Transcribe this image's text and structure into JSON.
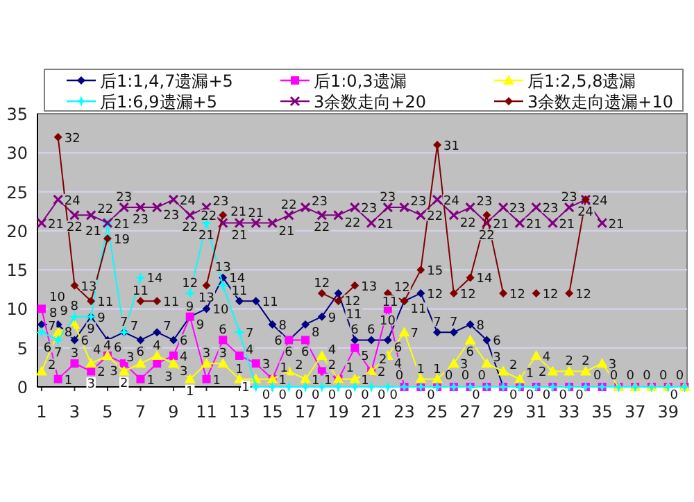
{
  "chart_data": {
    "type": "line",
    "x": [
      1,
      2,
      3,
      4,
      5,
      6,
      7,
      8,
      9,
      10,
      11,
      12,
      13,
      14,
      15,
      16,
      17,
      18,
      19,
      20,
      21,
      22,
      23,
      24,
      25,
      26,
      27,
      28,
      29,
      30,
      31,
      32,
      33,
      34,
      35,
      36,
      37,
      38,
      39,
      40
    ],
    "series": [
      {
        "name": "后1:1,4,7遗漏+5",
        "color": "#000080",
        "marker": "diamond",
        "values": [
          8,
          8,
          6,
          9,
          6,
          7,
          6,
          7,
          6,
          9,
          10,
          14,
          11,
          11,
          8,
          6,
          8,
          9,
          12,
          6,
          6,
          6,
          11,
          12,
          7,
          7,
          8,
          6,
          0,
          null,
          null,
          null,
          null,
          null,
          null,
          null,
          null,
          null,
          null,
          null
        ],
        "value_labels": [
          "8",
          "8",
          "6",
          "9",
          "6",
          "7",
          "6",
          "7",
          "6",
          "9",
          "10",
          "14",
          "11",
          "11",
          "8",
          "6",
          "8",
          "9",
          "12",
          "6",
          "6",
          "6",
          "11",
          "12",
          "7",
          "7",
          "8",
          "6",
          null,
          null,
          null,
          null,
          null,
          null,
          null,
          null,
          null,
          null,
          null,
          null
        ]
      },
      {
        "name": "后1:0,3遗漏",
        "color": "#ff00ff",
        "marker": "square",
        "values": [
          10,
          1,
          3,
          2,
          4,
          3,
          1,
          3,
          4,
          9,
          1,
          6,
          4,
          3,
          1,
          6,
          6,
          2,
          1,
          5,
          2,
          10,
          0,
          0,
          0,
          0,
          0,
          0,
          0,
          0,
          0,
          0,
          0,
          0,
          0,
          0,
          0,
          0,
          0,
          0
        ],
        "value_labels": [
          "10",
          "1",
          "3",
          "2",
          "4",
          "3",
          "1",
          "3",
          "4",
          "9",
          "1",
          "6",
          "4",
          "3",
          "1",
          "6",
          "6",
          "2",
          "1",
          "5",
          "2",
          "10",
          null,
          null,
          null,
          null,
          null,
          null,
          null,
          null,
          null,
          null,
          null,
          null,
          null,
          null,
          null,
          null,
          null,
          null
        ]
      },
      {
        "name": "后1:2,5,8遗漏",
        "color": "#ffff00",
        "marker": "triangle",
        "values": [
          2,
          7,
          8,
          3,
          4,
          2,
          3,
          4,
          3,
          1,
          3,
          3,
          1,
          1,
          1,
          2,
          1,
          4,
          1,
          1,
          2,
          4,
          7,
          1,
          1,
          3,
          6,
          3,
          2,
          1,
          4,
          2,
          2,
          2,
          3,
          0,
          0,
          0,
          0,
          0
        ],
        "value_labels": [
          "2",
          "7",
          "8",
          "3",
          "4",
          "2",
          "3",
          "4",
          "3",
          "1",
          "3",
          "3",
          "1",
          "1",
          "1",
          "2",
          "1",
          "4",
          "1",
          "1",
          "2",
          "4",
          "7",
          "1",
          "1",
          "3",
          "6",
          "3",
          "2",
          "1",
          "4",
          "2",
          "2",
          "2",
          "3",
          null,
          null,
          null,
          null,
          null
        ]
      },
      {
        "name": "后1:6,9遗漏+5",
        "color": "#00ffff",
        "marker": "star",
        "values": [
          7,
          6,
          9,
          9,
          21,
          7,
          14,
          null,
          null,
          12,
          21,
          13,
          7,
          0,
          0,
          0,
          0,
          0,
          0,
          0,
          0,
          0,
          0,
          0,
          0,
          0,
          0,
          0,
          0,
          0,
          0,
          0,
          0,
          0,
          0,
          0,
          0,
          0,
          0,
          0
        ],
        "value_labels": [
          "7",
          "6",
          "9",
          "9",
          "21",
          "7",
          "14",
          null,
          null,
          "12",
          "21",
          "13",
          "7",
          "0",
          "0",
          "0",
          "0",
          "0",
          "0",
          "0",
          "0",
          "0",
          "0",
          "0",
          "0",
          "0",
          "0",
          "0",
          "0",
          "0",
          "0",
          "0",
          "0",
          "0",
          "0",
          "0",
          "0",
          "0",
          "0",
          "0"
        ]
      },
      {
        "name": "3余数走向+20",
        "color": "#800080",
        "marker": "cross",
        "values": [
          21,
          24,
          22,
          22,
          21,
          23,
          23,
          23,
          24,
          22,
          23,
          21,
          21,
          21,
          21,
          22,
          23,
          22,
          22,
          23,
          21,
          23,
          23,
          22,
          24,
          22,
          23,
          21,
          23,
          21,
          23,
          21,
          23,
          24,
          21,
          null,
          null,
          null,
          null,
          null
        ],
        "value_labels": [
          "21",
          "24",
          "22",
          "22",
          "21",
          "23",
          "23",
          "23",
          "24",
          "22",
          "23",
          "21",
          "21",
          "21",
          "21",
          "22",
          "23",
          "22",
          "22",
          "23",
          "21",
          "23",
          "23",
          "22",
          "24",
          "22",
          "23",
          "21",
          "23",
          "21",
          "23",
          "21",
          "23",
          "24",
          "21",
          null,
          null,
          null,
          null,
          null
        ]
      },
      {
        "name": "3余数走向遗漏+10",
        "color": "#800000",
        "marker": "diamond",
        "values": [
          null,
          32,
          13,
          11,
          19,
          null,
          11,
          11,
          null,
          null,
          13,
          22,
          null,
          null,
          null,
          null,
          null,
          12,
          11,
          13,
          null,
          12,
          11,
          15,
          31,
          12,
          14,
          22,
          12,
          null,
          12,
          null,
          12,
          24,
          null,
          null,
          null,
          null,
          null,
          null
        ],
        "value_labels": [
          null,
          "32",
          "13",
          "11",
          "19",
          null,
          "11",
          "11",
          null,
          null,
          "13",
          "22",
          null,
          null,
          null,
          null,
          null,
          "12",
          "11",
          "13",
          null,
          "12",
          "11",
          "15",
          "31",
          "12",
          "14",
          "22",
          "12",
          null,
          "12",
          null,
          "12",
          "24",
          null,
          null,
          null,
          null,
          null,
          null
        ]
      }
    ],
    "xlim": [
      0.75,
      40.15
    ],
    "xticks": [
      1,
      3,
      5,
      7,
      9,
      11,
      13,
      15,
      17,
      19,
      21,
      23,
      25,
      27,
      29,
      31,
      33,
      35,
      37,
      39
    ],
    "ylim": [
      0,
      35
    ],
    "yticks": [
      0,
      5,
      10,
      15,
      20,
      25,
      30,
      35
    ],
    "grid": "y",
    "legend": "top"
  }
}
